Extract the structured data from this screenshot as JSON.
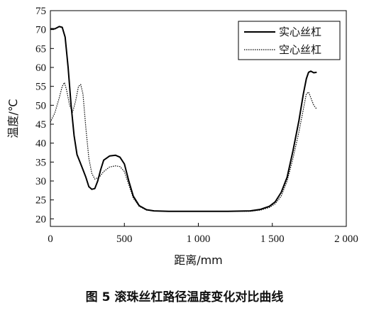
{
  "caption": "图 5  滚珠丝杠路径温度变化对比曲线",
  "chart_data": {
    "type": "line",
    "xlabel": "距离/mm",
    "ylabel": "温度/℃",
    "xlim": [
      0,
      2000
    ],
    "ylim": [
      18,
      75
    ],
    "xticks": [
      0,
      500,
      1000,
      1500,
      2000
    ],
    "xtick_labels": [
      "0",
      "500",
      "1 000",
      "1 500",
      "2 000"
    ],
    "yticks": [
      20,
      25,
      30,
      35,
      40,
      45,
      50,
      55,
      60,
      65,
      70,
      75
    ],
    "ytick_labels": [
      "20",
      "25",
      "30",
      "35",
      "40",
      "45",
      "50",
      "55",
      "60",
      "65",
      "70",
      "75"
    ],
    "grid": false,
    "legend_position": "top-right",
    "series": [
      {
        "name": "实心丝杠",
        "style": "solid",
        "color": "#000000",
        "points": [
          [
            0,
            70.2
          ],
          [
            30,
            70.2
          ],
          [
            60,
            70.8
          ],
          [
            80,
            70.6
          ],
          [
            100,
            68
          ],
          [
            120,
            60
          ],
          [
            140,
            50
          ],
          [
            160,
            42
          ],
          [
            180,
            37
          ],
          [
            200,
            35
          ],
          [
            220,
            33
          ],
          [
            240,
            31
          ],
          [
            260,
            28.5
          ],
          [
            280,
            27.8
          ],
          [
            300,
            28
          ],
          [
            320,
            30
          ],
          [
            340,
            33
          ],
          [
            360,
            35.5
          ],
          [
            400,
            36.6
          ],
          [
            440,
            36.8
          ],
          [
            470,
            36.3
          ],
          [
            500,
            34.5
          ],
          [
            530,
            30
          ],
          [
            560,
            26
          ],
          [
            600,
            23.5
          ],
          [
            650,
            22.4
          ],
          [
            700,
            22.1
          ],
          [
            800,
            22
          ],
          [
            1000,
            22
          ],
          [
            1200,
            22
          ],
          [
            1350,
            22.1
          ],
          [
            1420,
            22.5
          ],
          [
            1480,
            23.3
          ],
          [
            1520,
            24.5
          ],
          [
            1560,
            27
          ],
          [
            1600,
            31
          ],
          [
            1640,
            38
          ],
          [
            1680,
            46
          ],
          [
            1710,
            53
          ],
          [
            1730,
            57
          ],
          [
            1745,
            58.7
          ],
          [
            1760,
            59
          ],
          [
            1780,
            58.6
          ],
          [
            1800,
            58.7
          ]
        ]
      },
      {
        "name": "空心丝杠",
        "style": "dotted",
        "color": "#000000",
        "points": [
          [
            0,
            45.5
          ],
          [
            30,
            48
          ],
          [
            60,
            52
          ],
          [
            80,
            55
          ],
          [
            95,
            56
          ],
          [
            110,
            54
          ],
          [
            130,
            50
          ],
          [
            150,
            48.2
          ],
          [
            170,
            51
          ],
          [
            190,
            55
          ],
          [
            205,
            55.5
          ],
          [
            220,
            53
          ],
          [
            240,
            44
          ],
          [
            260,
            36
          ],
          [
            280,
            32
          ],
          [
            300,
            30.5
          ],
          [
            330,
            31
          ],
          [
            360,
            32.5
          ],
          [
            400,
            33.7
          ],
          [
            440,
            34
          ],
          [
            470,
            33.8
          ],
          [
            500,
            32.5
          ],
          [
            530,
            29
          ],
          [
            560,
            25.5
          ],
          [
            600,
            23.3
          ],
          [
            650,
            22.3
          ],
          [
            700,
            22.1
          ],
          [
            800,
            22
          ],
          [
            1000,
            22
          ],
          [
            1200,
            22
          ],
          [
            1350,
            22
          ],
          [
            1420,
            22.3
          ],
          [
            1480,
            23
          ],
          [
            1520,
            24
          ],
          [
            1560,
            26
          ],
          [
            1600,
            30
          ],
          [
            1640,
            36
          ],
          [
            1680,
            43
          ],
          [
            1710,
            49
          ],
          [
            1730,
            53
          ],
          [
            1745,
            53.5
          ],
          [
            1760,
            52
          ],
          [
            1780,
            50
          ],
          [
            1800,
            49
          ]
        ]
      }
    ]
  }
}
